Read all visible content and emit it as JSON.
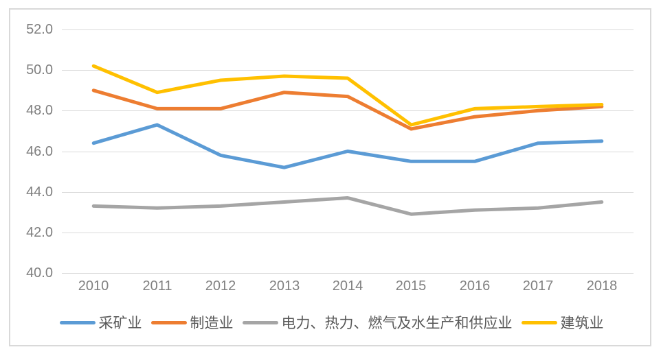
{
  "chart_data": {
    "type": "line",
    "title": "",
    "categories": [
      "2010",
      "2011",
      "2012",
      "2013",
      "2014",
      "2015",
      "2016",
      "2017",
      "2018"
    ],
    "series": [
      {
        "id": "mining",
        "name": "采矿业",
        "color": "#5B9BD5",
        "values": [
          46.4,
          47.3,
          45.8,
          45.2,
          46.0,
          45.5,
          45.5,
          46.4,
          46.5
        ]
      },
      {
        "id": "manufacturing",
        "name": "制造业",
        "color": "#ED7D31",
        "values": [
          49.0,
          48.1,
          48.1,
          48.9,
          48.7,
          47.1,
          47.7,
          48.0,
          48.2
        ]
      },
      {
        "id": "utilities",
        "name": "电力、热力、燃气及水生产和供应业",
        "color": "#A5A5A5",
        "values": [
          43.3,
          43.2,
          43.3,
          43.5,
          43.7,
          42.9,
          43.1,
          43.2,
          43.5
        ]
      },
      {
        "id": "construction",
        "name": "建筑业",
        "color": "#FFC000",
        "values": [
          50.2,
          48.9,
          49.5,
          49.7,
          49.6,
          47.3,
          48.1,
          48.2,
          48.3
        ]
      }
    ],
    "y_axis": {
      "min": 40,
      "max": 52,
      "ticks": [
        {
          "label": "52.0",
          "value": 52
        },
        {
          "label": "50.0",
          "value": 50
        },
        {
          "label": "48.0",
          "value": 48
        },
        {
          "label": "46.0",
          "value": 46
        },
        {
          "label": "44.0",
          "value": 44
        },
        {
          "label": "42.0",
          "value": 42
        },
        {
          "label": "40.0",
          "value": 40
        }
      ]
    },
    "xlabel": "",
    "ylabel": "",
    "grid": "horizontal",
    "legend_position": "bottom"
  },
  "colors": {
    "background": "#FFFFFF",
    "frame_border": "#D9D9D9",
    "gridline": "#D9D9D9",
    "axis_text": "#808080",
    "legend_text": "#595959"
  }
}
